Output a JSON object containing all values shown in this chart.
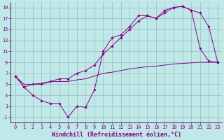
{
  "xlabel": "Windchill (Refroidissement éolien,°C)",
  "bg_color": "#c0e8e8",
  "line_color": "#880088",
  "grid_color": "#99bbbb",
  "xlim": [
    -0.5,
    23.5
  ],
  "ylim": [
    -2,
    20
  ],
  "xticks": [
    0,
    1,
    2,
    3,
    4,
    5,
    6,
    7,
    8,
    9,
    10,
    11,
    12,
    13,
    14,
    15,
    16,
    17,
    18,
    19,
    20,
    21,
    22,
    23
  ],
  "yticks": [
    -1,
    1,
    3,
    5,
    7,
    9,
    11,
    13,
    15,
    17,
    19
  ],
  "line1_x": [
    0,
    1,
    2,
    3,
    4,
    5,
    6,
    7,
    8,
    9,
    10,
    11,
    12,
    13,
    14,
    15,
    16,
    17,
    18,
    19,
    20,
    21,
    22,
    23
  ],
  "line1_y": [
    6.5,
    4.5,
    3.0,
    2.0,
    1.5,
    1.5,
    -1.0,
    1.0,
    0.8,
    4.0,
    11.0,
    13.5,
    14.0,
    15.5,
    17.5,
    17.5,
    17.0,
    18.5,
    19.0,
    19.2,
    18.5,
    11.5,
    9.2,
    9.0
  ],
  "line2_x": [
    0,
    1,
    2,
    3,
    4,
    5,
    6,
    7,
    8,
    9,
    10,
    11,
    12,
    13,
    14,
    15,
    16,
    17,
    18,
    19,
    20,
    21,
    22,
    23
  ],
  "line2_y": [
    6.5,
    4.5,
    5.0,
    5.0,
    5.5,
    6.0,
    6.0,
    7.0,
    7.5,
    8.5,
    10.5,
    12.0,
    13.5,
    15.0,
    16.5,
    17.5,
    17.0,
    18.0,
    19.0,
    19.2,
    18.5,
    18.0,
    15.5,
    9.0
  ],
  "line3_x": [
    0,
    1,
    2,
    3,
    4,
    5,
    6,
    7,
    8,
    9,
    10,
    11,
    12,
    13,
    14,
    15,
    16,
    17,
    18,
    19,
    20,
    21,
    22,
    23
  ],
  "line3_y": [
    6.5,
    5.0,
    5.0,
    5.2,
    5.5,
    5.5,
    5.5,
    5.8,
    6.0,
    6.5,
    7.0,
    7.2,
    7.5,
    7.8,
    8.0,
    8.2,
    8.3,
    8.5,
    8.7,
    8.8,
    8.9,
    9.0,
    9.0,
    9.0
  ],
  "xlabel_fontsize": 6.0,
  "tick_fontsize": 5.0
}
